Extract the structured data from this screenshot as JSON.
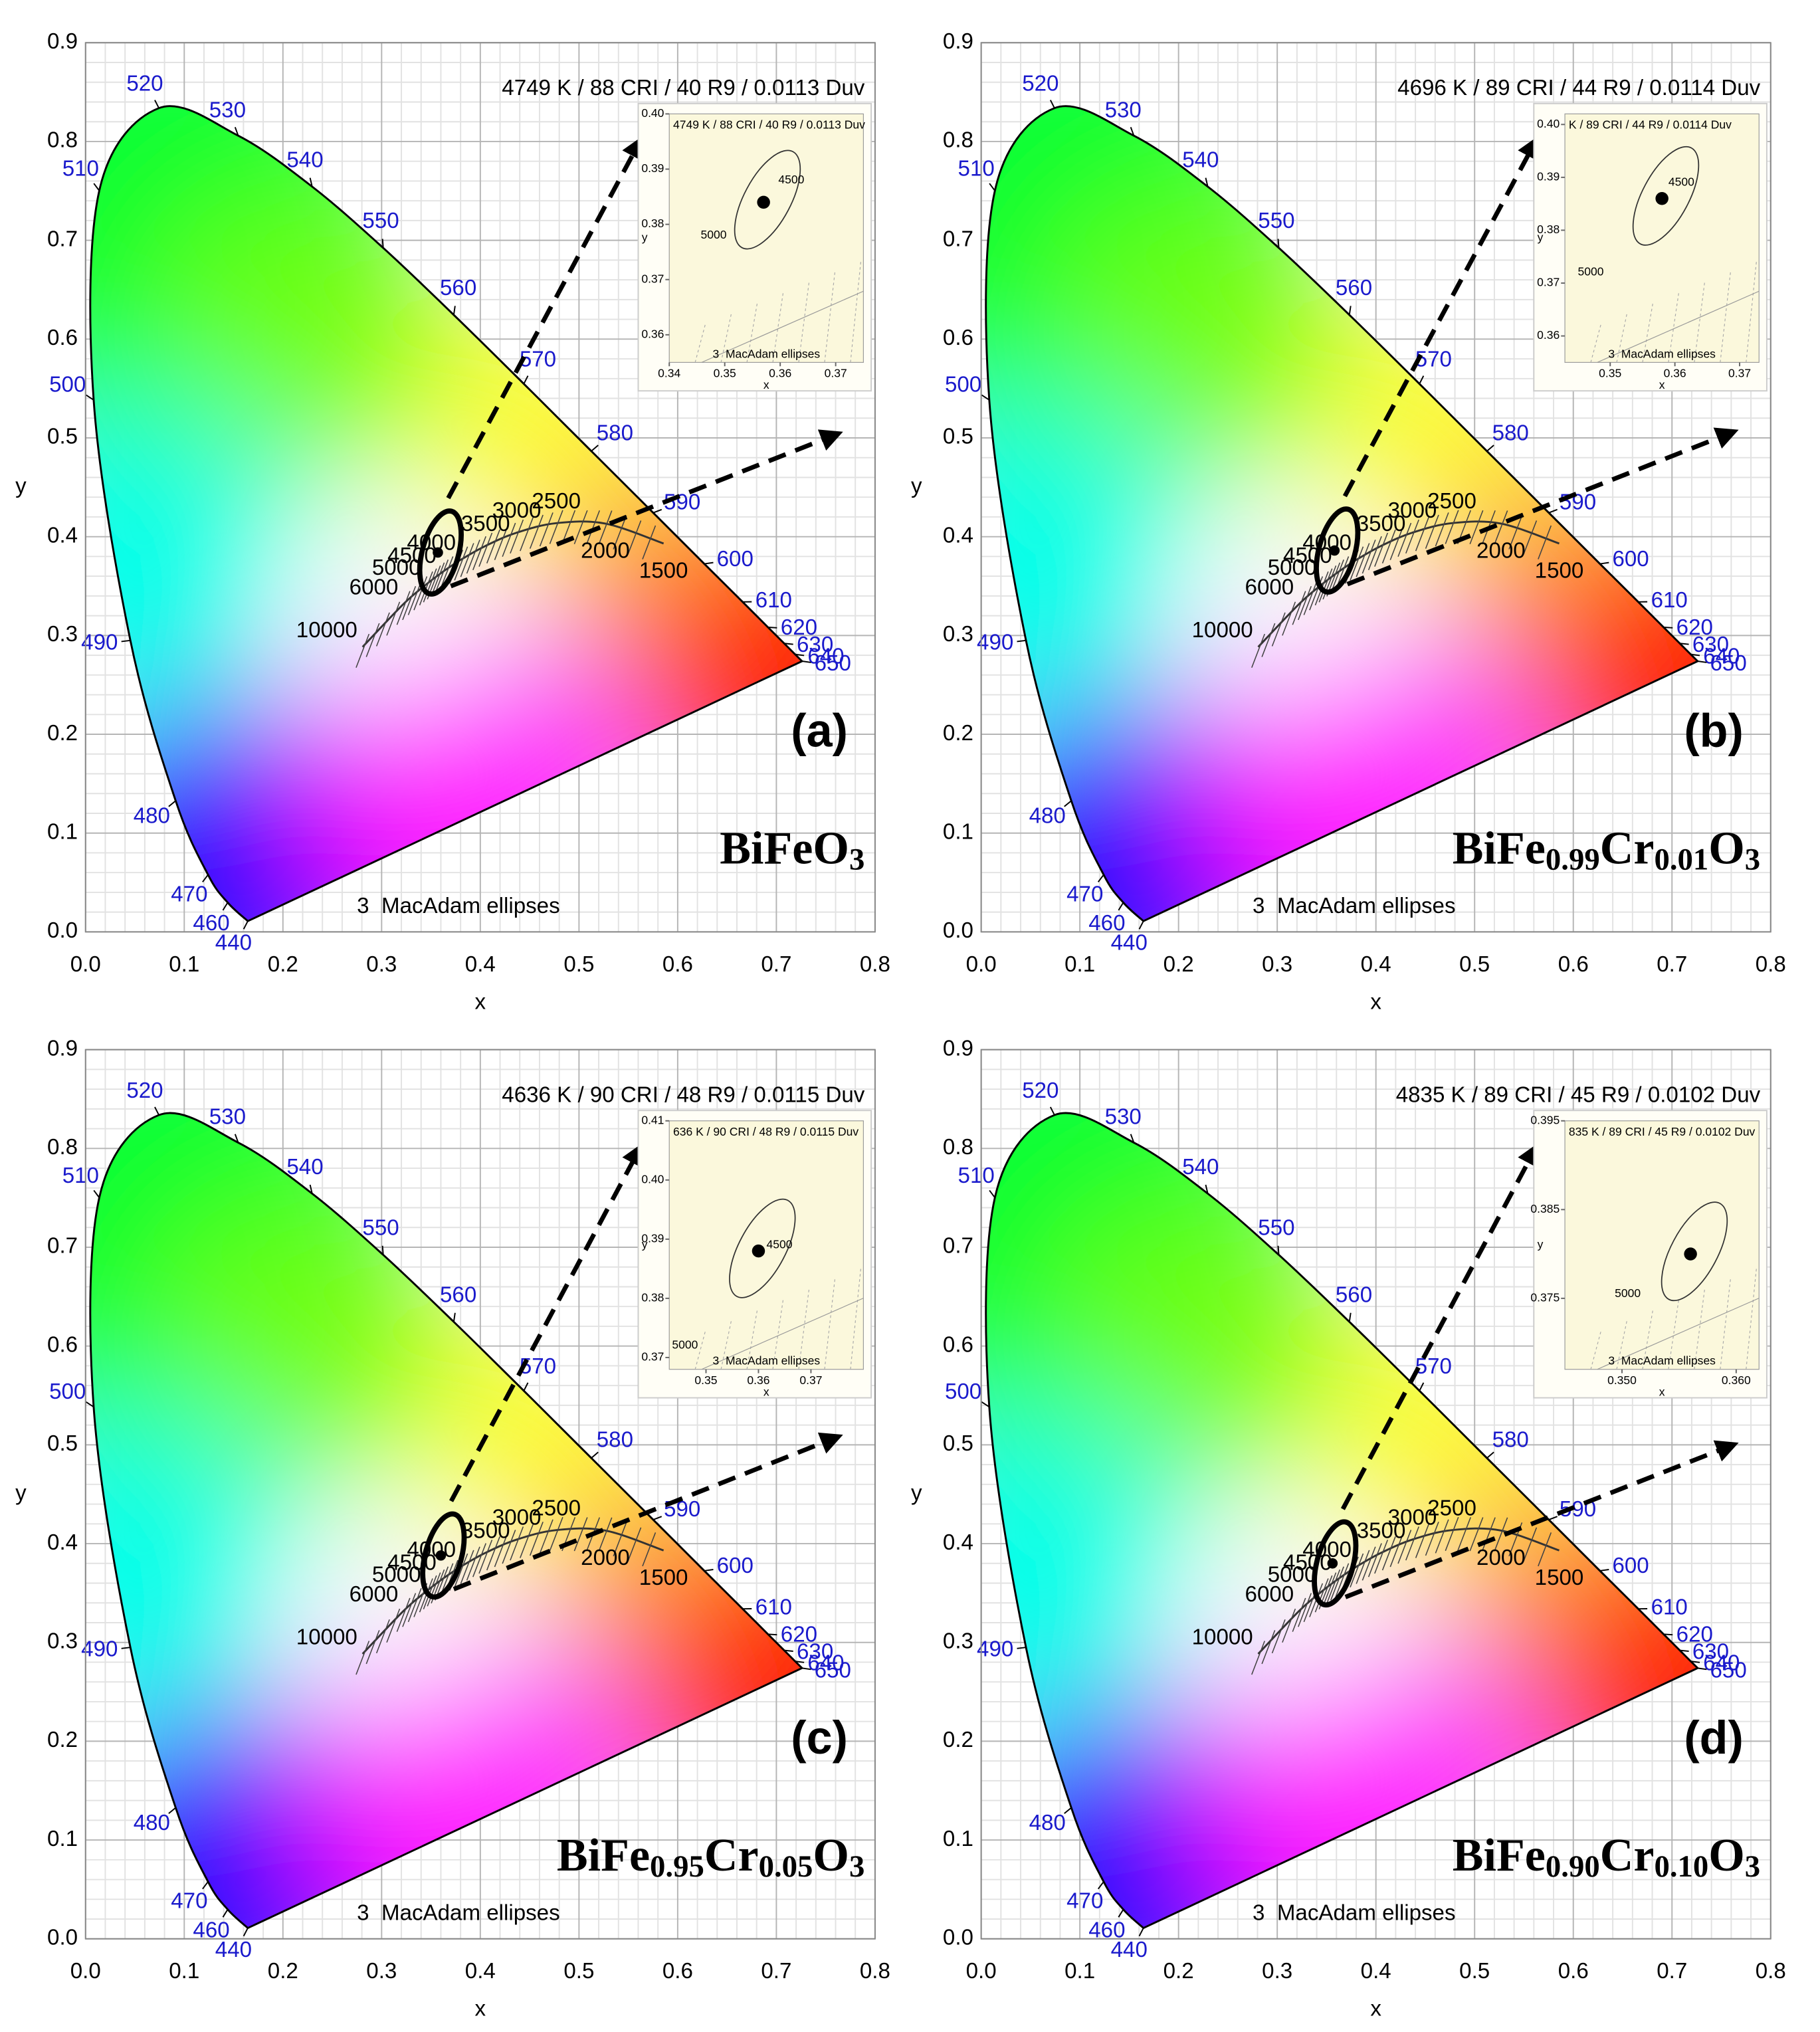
{
  "chart_data": [
    {
      "type": "scatter",
      "annotation": "4749 K / 88 CRI / 40 R9 / 0.0113 Duv",
      "panel_label": "(a)",
      "compound": [
        {
          "text": "BiFe"
        },
        {
          "text": "O"
        },
        {
          "text": "3",
          "sub": true
        }
      ],
      "footnote": "3  MacAdam ellipses",
      "xlabel": "x",
      "ylabel": "y",
      "xlim": [
        0,
        0.8
      ],
      "xticks": [
        {
          "value": 0,
          "label": "0.0"
        },
        {
          "value": 0.1,
          "label": "0.1"
        },
        {
          "value": 0.2,
          "label": "0.2"
        },
        {
          "value": 0.3,
          "label": "0.3"
        },
        {
          "value": 0.4,
          "label": "0.4"
        },
        {
          "value": 0.5,
          "label": "0.5"
        },
        {
          "value": 0.6,
          "label": "0.6"
        },
        {
          "value": 0.7,
          "label": "0.7"
        },
        {
          "value": 0.8,
          "label": "0.8"
        }
      ],
      "ylim": [
        0,
        0.9
      ],
      "yticks": [
        {
          "value": 0,
          "label": "0.0"
        },
        {
          "value": 0.1,
          "label": "0.1"
        },
        {
          "value": 0.2,
          "label": "0.2"
        },
        {
          "value": 0.3,
          "label": "0.3"
        },
        {
          "value": 0.4,
          "label": "0.4"
        },
        {
          "value": 0.5,
          "label": "0.5"
        },
        {
          "value": 0.6,
          "label": "0.6"
        },
        {
          "value": 0.7,
          "label": "0.7"
        },
        {
          "value": 0.8,
          "label": "0.8"
        },
        {
          "value": 0.9,
          "label": "0.9"
        }
      ],
      "x": [
        0.357
      ],
      "y": [
        0.384
      ],
      "wavelengths": {
        "labels": [
          440,
          460,
          470,
          480,
          490,
          500,
          510,
          520,
          530,
          540,
          550,
          560,
          570,
          580,
          590,
          600,
          610,
          620,
          630,
          640,
          650
        ],
        "x": [
          0.1644,
          0.144,
          0.1241,
          0.0913,
          0.0454,
          0.0082,
          0.0139,
          0.0743,
          0.1547,
          0.2296,
          0.3016,
          0.3731,
          0.4441,
          0.5125,
          0.5752,
          0.627,
          0.6658,
          0.6915,
          0.7079,
          0.719,
          0.726
        ],
        "y": [
          0.0109,
          0.0297,
          0.0578,
          0.1327,
          0.295,
          0.5384,
          0.7502,
          0.8338,
          0.8059,
          0.7543,
          0.6923,
          0.6245,
          0.5547,
          0.4866,
          0.4242,
          0.3725,
          0.334,
          0.3083,
          0.292,
          0.2809,
          0.274
        ]
      },
      "planckian": {
        "labels": [
          10000,
          6000,
          5000,
          4500,
          4000,
          3500,
          3000,
          2500,
          2000,
          1500
        ],
        "x": [
          0.2807,
          0.3221,
          0.3451,
          0.3608,
          0.3805,
          0.4053,
          0.4369,
          0.477,
          0.5267,
          0.5857
        ],
        "y": [
          0.2884,
          0.3318,
          0.3516,
          0.3636,
          0.3768,
          0.3907,
          0.4041,
          0.4137,
          0.4133,
          0.3931
        ]
      },
      "inset": {
        "annotation": "4749 K / 88 CRI / 40 R9 / 0.0113 Duv",
        "xlabel": "x",
        "ylabel": "y",
        "footnote": "3  MacAdam ellipses",
        "xlim": [
          0.34,
          0.375
        ],
        "xticks": [
          0.34,
          0.35,
          0.36,
          0.37
        ],
        "ylim": [
          0.355,
          0.4
        ],
        "yticks": [
          0.36,
          0.37,
          0.38,
          0.39,
          {
            "value": 0.4,
            "label": "0.40"
          }
        ],
        "x": [
          0.357
        ],
        "y": [
          0.384
        ],
        "cct": {
          "labels": [
            5000,
            4500
          ],
          "x": [
            0.348,
            0.362
          ],
          "y": [
            0.378,
            0.388
          ]
        }
      }
    },
    {
      "type": "scatter",
      "annotation": "4696 K / 89 CRI / 44 R9 / 0.0114 Duv",
      "panel_label": "(b)",
      "compound": [
        {
          "text": "BiFe"
        },
        {
          "text": "0.99",
          "sub": true
        },
        {
          "text": "Cr"
        },
        {
          "text": "0.01",
          "sub": true
        },
        {
          "text": "O"
        },
        {
          "text": "3",
          "sub": true
        }
      ],
      "footnote": "3  MacAdam ellipses",
      "xlabel": "x",
      "ylabel": "y",
      "xlim": [
        0,
        0.8
      ],
      "xticks": [
        {
          "value": 0,
          "label": "0.0"
        },
        {
          "value": 0.1,
          "label": "0.1"
        },
        {
          "value": 0.2,
          "label": "0.2"
        },
        {
          "value": 0.3,
          "label": "0.3"
        },
        {
          "value": 0.4,
          "label": "0.4"
        },
        {
          "value": 0.5,
          "label": "0.5"
        },
        {
          "value": 0.6,
          "label": "0.6"
        },
        {
          "value": 0.7,
          "label": "0.7"
        },
        {
          "value": 0.8,
          "label": "0.8"
        }
      ],
      "ylim": [
        0,
        0.9
      ],
      "yticks": [
        {
          "value": 0,
          "label": "0.0"
        },
        {
          "value": 0.1,
          "label": "0.1"
        },
        {
          "value": 0.2,
          "label": "0.2"
        },
        {
          "value": 0.3,
          "label": "0.3"
        },
        {
          "value": 0.4,
          "label": "0.4"
        },
        {
          "value": 0.5,
          "label": "0.5"
        },
        {
          "value": 0.6,
          "label": "0.6"
        },
        {
          "value": 0.7,
          "label": "0.7"
        },
        {
          "value": 0.8,
          "label": "0.8"
        },
        {
          "value": 0.9,
          "label": "0.9"
        }
      ],
      "x": [
        0.358
      ],
      "y": [
        0.386
      ],
      "wavelengths": {
        "labels": [
          440,
          460,
          470,
          480,
          490,
          500,
          510,
          520,
          530,
          540,
          550,
          560,
          570,
          580,
          590,
          600,
          610,
          620,
          630,
          640,
          650
        ],
        "x": [
          0.1644,
          0.144,
          0.1241,
          0.0913,
          0.0454,
          0.0082,
          0.0139,
          0.0743,
          0.1547,
          0.2296,
          0.3016,
          0.3731,
          0.4441,
          0.5125,
          0.5752,
          0.627,
          0.6658,
          0.6915,
          0.7079,
          0.719,
          0.726
        ],
        "y": [
          0.0109,
          0.0297,
          0.0578,
          0.1327,
          0.295,
          0.5384,
          0.7502,
          0.8338,
          0.8059,
          0.7543,
          0.6923,
          0.6245,
          0.5547,
          0.4866,
          0.4242,
          0.3725,
          0.334,
          0.3083,
          0.292,
          0.2809,
          0.274
        ]
      },
      "planckian": {
        "labels": [
          10000,
          6000,
          5000,
          4500,
          4000,
          3500,
          3000,
          2500,
          2000,
          1500
        ],
        "x": [
          0.2807,
          0.3221,
          0.3451,
          0.3608,
          0.3805,
          0.4053,
          0.4369,
          0.477,
          0.5267,
          0.5857
        ],
        "y": [
          0.2884,
          0.3318,
          0.3516,
          0.3636,
          0.3768,
          0.3907,
          0.4041,
          0.4137,
          0.4133,
          0.3931
        ]
      },
      "inset": {
        "annotation": "K / 89 CRI / 44 R9 / 0.0114 Duv",
        "xlabel": "x",
        "ylabel": "y",
        "footnote": "3  MacAdam ellipses",
        "xlim": [
          0.343,
          0.373
        ],
        "xticks": [
          0.35,
          0.36,
          0.37
        ],
        "ylim": [
          0.355,
          0.402
        ],
        "yticks": [
          0.36,
          0.37,
          0.38,
          0.39,
          {
            "value": 0.4,
            "label": "0.40"
          }
        ],
        "x": [
          0.358
        ],
        "y": [
          0.386
        ],
        "cct": {
          "labels": [
            5000,
            4500
          ],
          "x": [
            0.347,
            0.361
          ],
          "y": [
            0.372,
            0.389
          ]
        }
      }
    },
    {
      "type": "scatter",
      "annotation": "4636 K / 90 CRI / 48 R9 / 0.0115 Duv",
      "panel_label": "(c)",
      "compound": [
        {
          "text": "BiFe"
        },
        {
          "text": "0.95",
          "sub": true
        },
        {
          "text": "Cr"
        },
        {
          "text": "0.05",
          "sub": true
        },
        {
          "text": "O"
        },
        {
          "text": "3",
          "sub": true
        }
      ],
      "footnote": "3  MacAdam ellipses",
      "xlabel": "x",
      "ylabel": "y",
      "xlim": [
        0,
        0.8
      ],
      "xticks": [
        {
          "value": 0,
          "label": "0.0"
        },
        {
          "value": 0.1,
          "label": "0.1"
        },
        {
          "value": 0.2,
          "label": "0.2"
        },
        {
          "value": 0.3,
          "label": "0.3"
        },
        {
          "value": 0.4,
          "label": "0.4"
        },
        {
          "value": 0.5,
          "label": "0.5"
        },
        {
          "value": 0.6,
          "label": "0.6"
        },
        {
          "value": 0.7,
          "label": "0.7"
        },
        {
          "value": 0.8,
          "label": "0.8"
        }
      ],
      "ylim": [
        0,
        0.9
      ],
      "yticks": [
        {
          "value": 0,
          "label": "0.0"
        },
        {
          "value": 0.1,
          "label": "0.1"
        },
        {
          "value": 0.2,
          "label": "0.2"
        },
        {
          "value": 0.3,
          "label": "0.3"
        },
        {
          "value": 0.4,
          "label": "0.4"
        },
        {
          "value": 0.5,
          "label": "0.5"
        },
        {
          "value": 0.6,
          "label": "0.6"
        },
        {
          "value": 0.7,
          "label": "0.7"
        },
        {
          "value": 0.8,
          "label": "0.8"
        },
        {
          "value": 0.9,
          "label": "0.9"
        }
      ],
      "x": [
        0.36
      ],
      "y": [
        0.388
      ],
      "wavelengths": {
        "labels": [
          440,
          460,
          470,
          480,
          490,
          500,
          510,
          520,
          530,
          540,
          550,
          560,
          570,
          580,
          590,
          600,
          610,
          620,
          630,
          640,
          650
        ],
        "x": [
          0.1644,
          0.144,
          0.1241,
          0.0913,
          0.0454,
          0.0082,
          0.0139,
          0.0743,
          0.1547,
          0.2296,
          0.3016,
          0.3731,
          0.4441,
          0.5125,
          0.5752,
          0.627,
          0.6658,
          0.6915,
          0.7079,
          0.719,
          0.726
        ],
        "y": [
          0.0109,
          0.0297,
          0.0578,
          0.1327,
          0.295,
          0.5384,
          0.7502,
          0.8338,
          0.8059,
          0.7543,
          0.6923,
          0.6245,
          0.5547,
          0.4866,
          0.4242,
          0.3725,
          0.334,
          0.3083,
          0.292,
          0.2809,
          0.274
        ]
      },
      "planckian": {
        "labels": [
          10000,
          6000,
          5000,
          4500,
          4000,
          3500,
          3000,
          2500,
          2000,
          1500
        ],
        "x": [
          0.2807,
          0.3221,
          0.3451,
          0.3608,
          0.3805,
          0.4053,
          0.4369,
          0.477,
          0.5267,
          0.5857
        ],
        "y": [
          0.2884,
          0.3318,
          0.3516,
          0.3636,
          0.3768,
          0.3907,
          0.4041,
          0.4137,
          0.4133,
          0.3931
        ]
      },
      "inset": {
        "annotation": "636 K / 90 CRI / 48 R9 / 0.0115 Duv",
        "xlabel": "x",
        "ylabel": "y",
        "footnote": "3  MacAdam ellipses",
        "xlim": [
          0.343,
          0.38
        ],
        "xticks": [
          0.35,
          0.36,
          0.37
        ],
        "ylim": [
          0.368,
          0.41
        ],
        "yticks": [
          0.37,
          0.38,
          0.39,
          {
            "value": 0.4,
            "label": "0.40"
          },
          0.41
        ],
        "x": [
          0.36
        ],
        "y": [
          0.388
        ],
        "cct": {
          "labels": [
            4500,
            5000
          ],
          "x": [
            0.364,
            0.346
          ],
          "y": [
            0.389,
            0.372
          ]
        }
      }
    },
    {
      "type": "scatter",
      "annotation": "4835 K / 89 CRI / 45 R9 / 0.0102 Duv",
      "panel_label": "(d)",
      "compound": [
        {
          "text": "BiFe"
        },
        {
          "text": "0.90",
          "sub": true
        },
        {
          "text": "Cr"
        },
        {
          "text": "0.10",
          "sub": true
        },
        {
          "text": "O"
        },
        {
          "text": "3",
          "sub": true
        }
      ],
      "footnote": "3  MacAdam ellipses",
      "xlabel": "x",
      "ylabel": "y",
      "xlim": [
        0,
        0.8
      ],
      "xticks": [
        {
          "value": 0,
          "label": "0.0"
        },
        {
          "value": 0.1,
          "label": "0.1"
        },
        {
          "value": 0.2,
          "label": "0.2"
        },
        {
          "value": 0.3,
          "label": "0.3"
        },
        {
          "value": 0.4,
          "label": "0.4"
        },
        {
          "value": 0.5,
          "label": "0.5"
        },
        {
          "value": 0.6,
          "label": "0.6"
        },
        {
          "value": 0.7,
          "label": "0.7"
        },
        {
          "value": 0.8,
          "label": "0.8"
        }
      ],
      "ylim": [
        0,
        0.9
      ],
      "yticks": [
        {
          "value": 0,
          "label": "0.0"
        },
        {
          "value": 0.1,
          "label": "0.1"
        },
        {
          "value": 0.2,
          "label": "0.2"
        },
        {
          "value": 0.3,
          "label": "0.3"
        },
        {
          "value": 0.4,
          "label": "0.4"
        },
        {
          "value": 0.5,
          "label": "0.5"
        },
        {
          "value": 0.6,
          "label": "0.6"
        },
        {
          "value": 0.7,
          "label": "0.7"
        },
        {
          "value": 0.8,
          "label": "0.8"
        },
        {
          "value": 0.9,
          "label": "0.9"
        }
      ],
      "x": [
        0.356
      ],
      "y": [
        0.38
      ],
      "wavelengths": {
        "labels": [
          440,
          460,
          470,
          480,
          490,
          500,
          510,
          520,
          530,
          540,
          550,
          560,
          570,
          580,
          590,
          600,
          610,
          620,
          630,
          640,
          650
        ],
        "x": [
          0.1644,
          0.144,
          0.1241,
          0.0913,
          0.0454,
          0.0082,
          0.0139,
          0.0743,
          0.1547,
          0.2296,
          0.3016,
          0.3731,
          0.4441,
          0.5125,
          0.5752,
          0.627,
          0.6658,
          0.6915,
          0.7079,
          0.719,
          0.726
        ],
        "y": [
          0.0109,
          0.0297,
          0.0578,
          0.1327,
          0.295,
          0.5384,
          0.7502,
          0.8338,
          0.8059,
          0.7543,
          0.6923,
          0.6245,
          0.5547,
          0.4866,
          0.4242,
          0.3725,
          0.334,
          0.3083,
          0.292,
          0.2809,
          0.274
        ]
      },
      "planckian": {
        "labels": [
          10000,
          6000,
          5000,
          4500,
          4000,
          3500,
          3000,
          2500,
          2000,
          1500
        ],
        "x": [
          0.2807,
          0.3221,
          0.3451,
          0.3608,
          0.3805,
          0.4053,
          0.4369,
          0.477,
          0.5267,
          0.5857
        ],
        "y": [
          0.2884,
          0.3318,
          0.3516,
          0.3636,
          0.3768,
          0.3907,
          0.4041,
          0.4137,
          0.4133,
          0.3931
        ]
      },
      "inset": {
        "annotation": "835 K / 89 CRI / 45 R9 / 0.0102 Duv",
        "xlabel": "x",
        "ylabel": "y",
        "footnote": "3  MacAdam ellipses",
        "xlim": [
          0.345,
          0.362
        ],
        "xticks": [
          {
            "value": 0.35,
            "label": "0.350"
          },
          {
            "value": 0.36,
            "label": "0.360"
          }
        ],
        "ylim": [
          0.367,
          0.395
        ],
        "yticks": [
          0.375,
          0.385,
          0.395
        ],
        "x": [
          0.356
        ],
        "y": [
          0.38
        ],
        "cct": {
          "labels": [
            5000
          ],
          "x": [
            0.3505
          ],
          "y": [
            0.3755
          ]
        }
      }
    }
  ]
}
